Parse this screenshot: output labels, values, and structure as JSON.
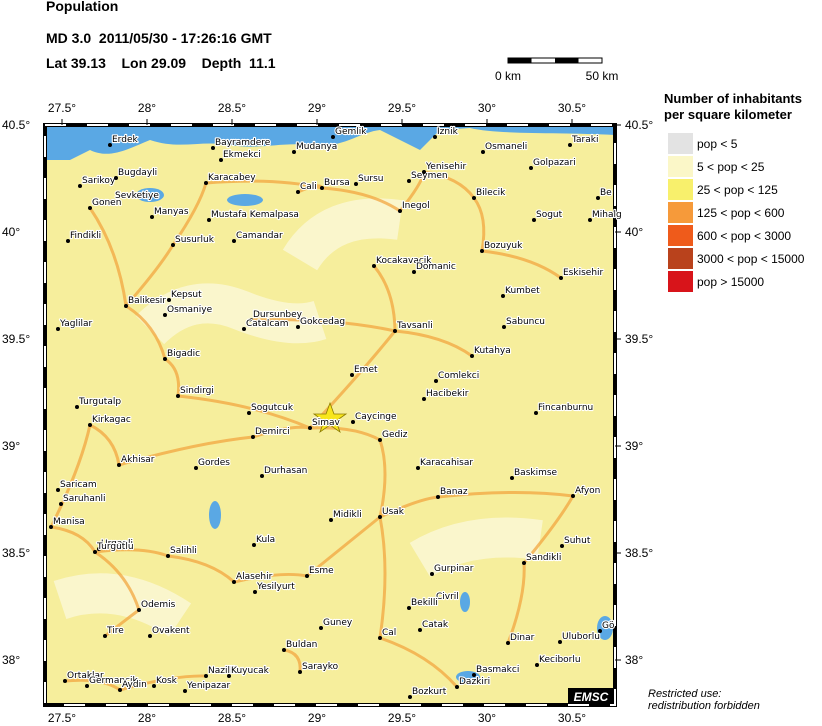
{
  "header": {
    "title": "Population",
    "event": "MD 3.0  2011/05/30 - 17:26:16 GMT",
    "location": "Lat 39.13    Lon 29.09    Depth  11.1"
  },
  "scale_bar": {
    "start": "0 km",
    "end": "50 km"
  },
  "map": {
    "lon_ticks": [
      {
        "value": 27.5,
        "label": "27.5°"
      },
      {
        "value": 28,
        "label": "28°"
      },
      {
        "value": 28.5,
        "label": "28.5°"
      },
      {
        "value": 29,
        "label": "29°"
      },
      {
        "value": 29.5,
        "label": "29.5°"
      },
      {
        "value": 30,
        "label": "30°"
      },
      {
        "value": 30.5,
        "label": "30.5°"
      }
    ],
    "lat_ticks": [
      {
        "value": 40.5,
        "label": "40.5°"
      },
      {
        "value": 40,
        "label": "40°"
      },
      {
        "value": 39.5,
        "label": "39.5°"
      },
      {
        "value": 39,
        "label": "39°"
      },
      {
        "value": 38.5,
        "label": "38.5°"
      },
      {
        "value": 38,
        "label": "38°"
      }
    ],
    "cities": [
      "Erdek",
      "Bayramdere",
      "Ekmekci",
      "Gemlik",
      "Mudanya",
      "Iznik",
      "Osmaneli",
      "Taraki",
      "Golpazari",
      "Sarikoy",
      "Bugdayli",
      "Karacabey",
      "Cali",
      "Bursa",
      "Sursu",
      "Seymen",
      "Yenisehir",
      "Bilecik",
      "Be",
      "Sevketiye",
      "Gonen",
      "Manyas",
      "Mustafa Kemalpasa",
      "Inegol",
      "Sogut",
      "Mihalg",
      "Findikli",
      "Susurluk",
      "Camandar",
      "Bozuyuk",
      "Kocakavacik",
      "Domanic",
      "Eskisehir",
      "Kepsut",
      "Balikesir",
      "Kumbet",
      "Osmaniye",
      "Dursunbey",
      "Catalcam",
      "Gokcedag",
      "Yaglilar",
      "Tavsanli",
      "Sabuncu",
      "Bigadic",
      "Kutahya",
      "Emet",
      "Comlekci",
      "Sindirgi",
      "Hacibekir",
      "Turgutalp",
      "Sogutcuk",
      "Caycinge",
      "Fincanburnu",
      "Simav",
      "Kirkagac",
      "Demirci",
      "Gediz",
      "Akhisar",
      "Gordes",
      "Karacahisar",
      "Baskimse",
      "Durhasan",
      "Saricam",
      "Saruhanli",
      "Banaz",
      "Afyon",
      "Midikli",
      "Usak",
      "Manisa",
      "Kula",
      "Suhut",
      "Urganli",
      "Turgutlu",
      "Salihli",
      "Sandikli",
      "Esme",
      "Gurpinar",
      "Alasehir",
      "Yesilyurt",
      "Civril",
      "Bekilli",
      "Odemis",
      "Guney",
      "Catak",
      "Tire",
      "Ovakent",
      "Cal",
      "Dinar",
      "Uluborlu",
      "Gö",
      "Buldan",
      "Keciborlu",
      "Sarayko",
      "Basmakci",
      "Dazkiri",
      "Nazilli",
      "Kuyucak",
      "Ortaklar",
      "Germancik",
      "Kosk",
      "Aydin",
      "Yenipazar",
      "Bozkurt"
    ],
    "badge": "EMSC"
  },
  "legend": {
    "title": [
      "Number of inhabitants",
      "per square kilometer"
    ],
    "items": [
      {
        "label": "pop < 5",
        "color": "#e3e3e3"
      },
      {
        "label": "5 < pop < 25",
        "color": "#fbf7c8"
      },
      {
        "label": "25 < pop < 125",
        "color": "#f8f06c"
      },
      {
        "label": "125 < pop < 600",
        "color": "#f69a3a"
      },
      {
        "label": "600 < pop < 3000",
        "color": "#ef5b1b"
      },
      {
        "label": "3000 < pop < 15000",
        "color": "#b9421c"
      },
      {
        "label": "pop > 15000",
        "color": "#d8141a"
      }
    ]
  },
  "footer": [
    "Restricted use:",
    "redistribution forbidden"
  ]
}
